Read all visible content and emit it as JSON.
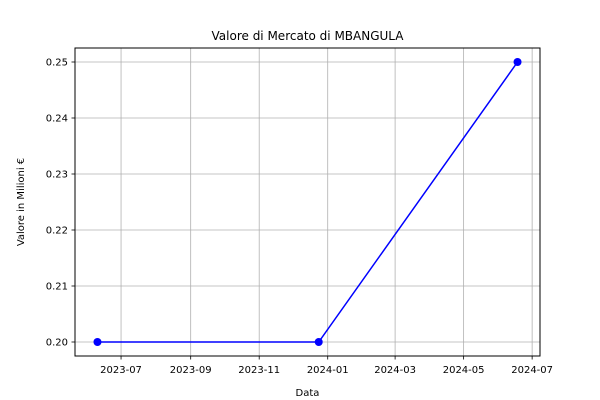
{
  "chart_data": {
    "type": "line",
    "title": "Valore di Mercato di MBANGULA",
    "xlabel": "Data",
    "ylabel": "Valore in Milioni €",
    "x_type": "date",
    "xlim": [
      "2023-05-21",
      "2024-07-08"
    ],
    "ylim": [
      0.1975,
      0.2525
    ],
    "grid": true,
    "x_ticks": [
      {
        "value": "2023-07-01",
        "label": "2023-07"
      },
      {
        "value": "2023-09-01",
        "label": "2023-09"
      },
      {
        "value": "2023-11-01",
        "label": "2023-11"
      },
      {
        "value": "2024-01-01",
        "label": "2024-01"
      },
      {
        "value": "2024-03-01",
        "label": "2024-03"
      },
      {
        "value": "2024-05-01",
        "label": "2024-05"
      },
      {
        "value": "2024-07-01",
        "label": "2024-07"
      }
    ],
    "y_ticks": [
      {
        "value": 0.2,
        "label": "0.20"
      },
      {
        "value": 0.21,
        "label": "0.21"
      },
      {
        "value": 0.22,
        "label": "0.22"
      },
      {
        "value": 0.23,
        "label": "0.23"
      },
      {
        "value": 0.24,
        "label": "0.24"
      },
      {
        "value": 0.25,
        "label": "0.25"
      }
    ],
    "series": [
      {
        "color": "#0000ff",
        "marker": "circle",
        "points": [
          {
            "x": "2023-06-10",
            "y": 0.2
          },
          {
            "x": "2023-12-24",
            "y": 0.2
          },
          {
            "x": "2024-06-18",
            "y": 0.25
          }
        ]
      }
    ]
  }
}
